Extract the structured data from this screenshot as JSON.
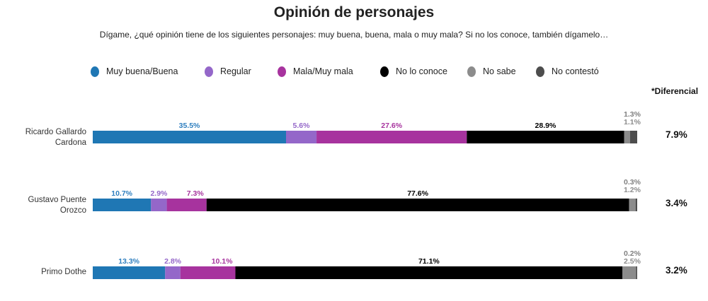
{
  "chart_data": {
    "type": "bar",
    "orientation": "horizontal",
    "stacked": true,
    "title": "Opinión de personajes",
    "subtitle": "Dígame, ¿qué opinión tiene de los siguientes personajes: muy buena, buena, mala o muy mala? Si no los conoce, también dígamelo…",
    "xlabel": "",
    "ylabel": "",
    "xlim": [
      0,
      100
    ],
    "grid": false,
    "legend_position": "top",
    "categories": [
      "Ricardo Gallardo Cardona",
      "Gustavo Puente Orozco",
      "Primo Dothe"
    ],
    "category_lines": [
      [
        "Ricardo Gallardo",
        "Cardona"
      ],
      [
        "Gustavo Puente",
        "Orozco"
      ],
      [
        "Primo Dothe"
      ]
    ],
    "series": [
      {
        "name": "Muy buena/Buena",
        "color": "#1f77b4",
        "label_color": "#2f7fbf",
        "values": [
          35.5,
          10.7,
          13.3
        ],
        "labels": [
          "35.5%",
          "10.7%",
          "13.3%"
        ]
      },
      {
        "name": "Regular",
        "color": "#9467c9",
        "label_color": "#9467c9",
        "values": [
          5.6,
          2.9,
          2.8
        ],
        "labels": [
          "5.6%",
          "2.9%",
          "2.8%"
        ]
      },
      {
        "name": "Mala/Muy mala",
        "color": "#a7339e",
        "label_color": "#a7339e",
        "values": [
          27.6,
          7.3,
          10.1
        ],
        "labels": [
          "27.6%",
          "7.3%",
          "10.1%"
        ]
      },
      {
        "name": "No lo conoce",
        "color": "#000000",
        "label_color": "#000000",
        "values": [
          28.9,
          77.6,
          71.1
        ],
        "labels": [
          "28.9%",
          "77.6%",
          "71.1%"
        ]
      },
      {
        "name": "No sabe",
        "color": "#8c8c8c",
        "label_color": "#8c8c8c",
        "values": [
          1.1,
          1.2,
          2.5
        ],
        "labels": [
          "1.1%",
          "1.2%",
          "2.5%"
        ]
      },
      {
        "name": "No contestó",
        "color": "#4d4d4d",
        "label_color": "#808080",
        "values": [
          1.3,
          0.3,
          0.2
        ],
        "labels": [
          "1.3%",
          "0.3%",
          "0.2%"
        ]
      }
    ],
    "differential": {
      "header": "*Diferencial",
      "values": [
        "7.9%",
        "3.4%",
        "3.2%"
      ]
    }
  }
}
